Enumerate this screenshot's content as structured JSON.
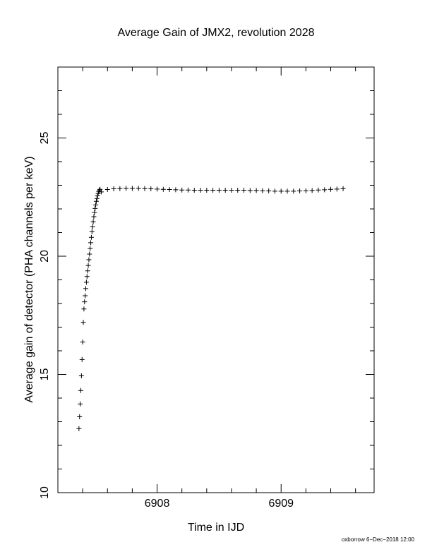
{
  "chart_data": {
    "type": "scatter",
    "title": "Average Gain of JMX2, revolution 2028",
    "xlabel": "Time in IJD",
    "ylabel": "Average gain of detector (PHA channels per keV)",
    "footnote": "oxborrow 6−Dec−2018 12:00",
    "xlim": [
      6907.2,
      6909.75
    ],
    "ylim": [
      10,
      28
    ],
    "xticks": [
      6908,
      6909
    ],
    "yticks": [
      10,
      15,
      20,
      25
    ],
    "xminorticks": [
      6907.4,
      6907.6,
      6907.8,
      6908.2,
      6908.4,
      6908.6,
      6908.8,
      6909.2,
      6909.4,
      6909.6
    ],
    "yminorticks": [
      11,
      12,
      13,
      14,
      16,
      17,
      18,
      19,
      21,
      22,
      23,
      24,
      26,
      27
    ],
    "series": [
      {
        "color": "#000000",
        "x": [
          6907.37,
          6907.375,
          6907.38,
          6907.385,
          6907.39,
          6907.395,
          6907.4,
          6907.405,
          6907.41,
          6907.415,
          6907.42,
          6907.425,
          6907.43,
          6907.435,
          6907.44,
          6907.445,
          6907.45,
          6907.455,
          6907.46,
          6907.465,
          6907.47,
          6907.475,
          6907.48,
          6907.485,
          6907.49,
          6907.495,
          6907.5,
          6907.505,
          6907.51,
          6907.515,
          6907.52,
          6907.525,
          6907.53,
          6907.535,
          6907.54,
          6907.55,
          6907.6,
          6907.65,
          6907.7,
          6907.75,
          6907.8,
          6907.85,
          6907.9,
          6907.95,
          6908.0,
          6908.05,
          6908.1,
          6908.15,
          6908.2,
          6908.25,
          6908.3,
          6908.35,
          6908.4,
          6908.45,
          6908.5,
          6908.55,
          6908.6,
          6908.65,
          6908.7,
          6908.75,
          6908.8,
          6908.85,
          6908.9,
          6908.95,
          6909.0,
          6909.05,
          6909.1,
          6909.15,
          6909.2,
          6909.25,
          6909.3,
          6909.35,
          6909.4,
          6909.45,
          6909.5
        ],
        "values": [
          12.71,
          13.21,
          13.75,
          14.32,
          14.94,
          15.63,
          16.37,
          17.2,
          17.77,
          18.07,
          18.33,
          18.63,
          18.9,
          19.14,
          19.38,
          19.61,
          19.85,
          20.09,
          20.33,
          20.57,
          20.8,
          21.04,
          21.25,
          21.46,
          21.67,
          21.85,
          22.02,
          22.17,
          22.32,
          22.44,
          22.56,
          22.65,
          22.74,
          22.8,
          22.83,
          22.72,
          22.82,
          22.85,
          22.86,
          22.87,
          22.87,
          22.87,
          22.86,
          22.85,
          22.84,
          22.83,
          22.82,
          22.81,
          22.8,
          22.8,
          22.79,
          22.79,
          22.79,
          22.79,
          22.79,
          22.79,
          22.79,
          22.79,
          22.79,
          22.78,
          22.78,
          22.77,
          22.76,
          22.75,
          22.75,
          22.75,
          22.75,
          22.76,
          22.77,
          22.78,
          22.8,
          22.81,
          22.83,
          22.84,
          22.86
        ]
      }
    ]
  }
}
